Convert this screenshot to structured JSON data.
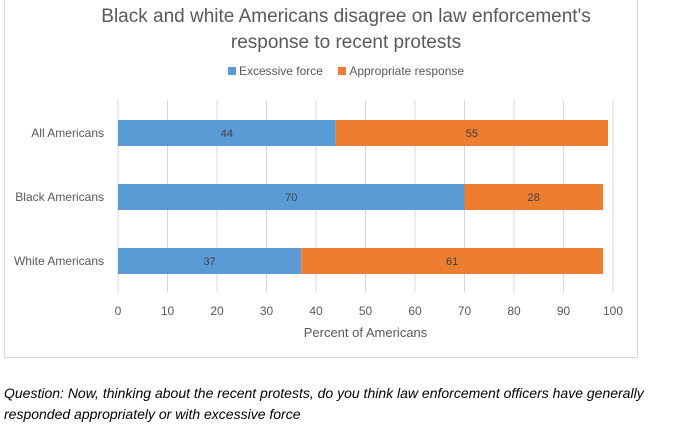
{
  "chart_data": {
    "type": "bar",
    "orientation": "horizontal",
    "stacked": true,
    "title": "Black and white Americans disagree on law enforcement's response to recent protests",
    "title_lines": [
      "Black and white Americans disagree on law enforcement's",
      "response to recent protests"
    ],
    "xlabel": "Percent of Americans",
    "ylabel": "",
    "xlim": [
      0,
      100
    ],
    "x_ticks": [
      0,
      10,
      20,
      30,
      40,
      50,
      60,
      70,
      80,
      90,
      100
    ],
    "categories": [
      "All Americans",
      "Black Americans",
      "White Americans"
    ],
    "series": [
      {
        "name": "Excessive force",
        "values": [
          44,
          70,
          37
        ],
        "color": "#5b9bd5"
      },
      {
        "name": "Appropriate response",
        "values": [
          55,
          28,
          61
        ],
        "color": "#ed7d31"
      }
    ],
    "legend_position": "top",
    "grid": true
  },
  "caption": "Question: Now, thinking about the recent protests, do you think law enforcement officers have generally responded appropriately or with excessive force"
}
